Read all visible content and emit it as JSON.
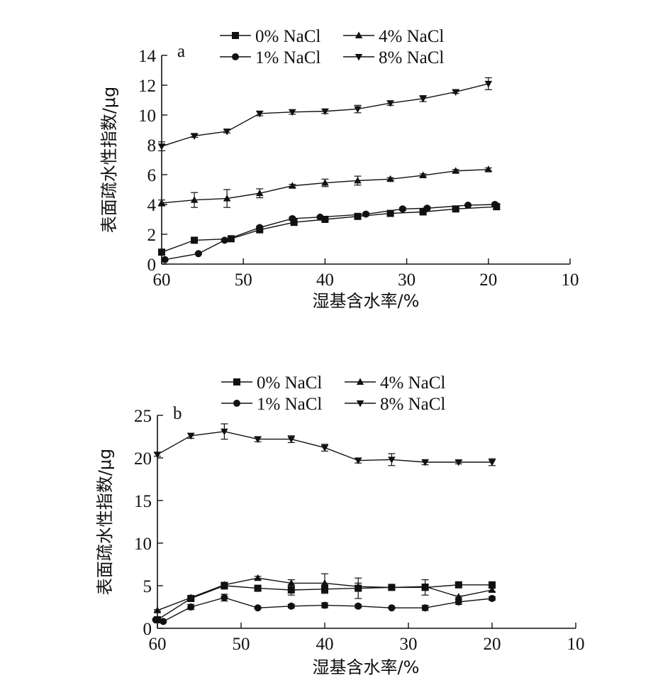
{
  "chart_data": [
    {
      "type": "line",
      "panel_label": "a",
      "xlabel": "湿基含水率/%",
      "ylabel": "表面疏水性指数/μg",
      "xlim": [
        60,
        10
      ],
      "ylim": [
        0,
        14
      ],
      "x_reversed": true,
      "xticks": [
        60,
        50,
        40,
        30,
        20,
        10
      ],
      "yticks": [
        0,
        2,
        4,
        6,
        8,
        10,
        12,
        14
      ],
      "legend_position": "top",
      "series": [
        {
          "name": "0% NaCl",
          "marker": "square",
          "color": "#111111",
          "x": [
            60,
            56,
            51.5,
            48,
            43.8,
            40,
            36,
            32,
            28,
            24,
            19
          ],
          "y": [
            0.8,
            1.6,
            1.7,
            2.3,
            2.8,
            3.0,
            3.2,
            3.4,
            3.5,
            3.7,
            3.85
          ],
          "err": [
            0.1,
            0.1,
            0.1,
            0.1,
            0.2,
            0.1,
            0.1,
            0.1,
            0.1,
            0.1,
            0.2
          ]
        },
        {
          "name": "1% NaCl",
          "marker": "circle",
          "color": "#111111",
          "x": [
            59.6,
            55.5,
            52.3,
            48,
            44,
            40.6,
            35,
            30.5,
            27.5,
            22.5,
            19.2
          ],
          "y": [
            0.3,
            0.7,
            1.6,
            2.45,
            3.05,
            3.15,
            3.35,
            3.7,
            3.75,
            3.95,
            4.0
          ],
          "err": [
            0.05,
            0.05,
            0.05,
            0.1,
            0.1,
            0.05,
            0.1,
            0.1,
            0.1,
            0.05,
            0.1
          ]
        },
        {
          "name": "4% NaCl",
          "marker": "triangle-up",
          "color": "#111111",
          "x": [
            60,
            56,
            52,
            48,
            44,
            40,
            36,
            32,
            28,
            24,
            20
          ],
          "y": [
            4.1,
            4.3,
            4.4,
            4.75,
            5.25,
            5.45,
            5.6,
            5.7,
            5.95,
            6.25,
            6.35
          ],
          "err": [
            0.2,
            0.5,
            0.6,
            0.3,
            0.1,
            0.25,
            0.3,
            0.1,
            0.1,
            0.1,
            0.1
          ]
        },
        {
          "name": "8% NaCl",
          "marker": "triangle-down",
          "color": "#111111",
          "x": [
            60,
            56,
            52,
            48,
            44,
            40,
            36,
            32,
            28,
            24,
            20
          ],
          "y": [
            7.9,
            8.6,
            8.9,
            10.1,
            10.2,
            10.25,
            10.4,
            10.8,
            11.1,
            11.55,
            12.1
          ],
          "err": [
            0.3,
            0.1,
            0.1,
            0.15,
            0.15,
            0.15,
            0.25,
            0.15,
            0.2,
            0.1,
            0.4
          ]
        }
      ]
    },
    {
      "type": "line",
      "panel_label": "b",
      "xlabel": "湿基含水率/%",
      "ylabel": "表面疏水性指数/μg",
      "xlim": [
        60,
        10
      ],
      "ylim": [
        0,
        25
      ],
      "x_reversed": true,
      "xticks": [
        60,
        50,
        40,
        30,
        20,
        10
      ],
      "yticks": [
        0,
        5,
        10,
        15,
        20,
        25
      ],
      "legend_position": "top",
      "series": [
        {
          "name": "0% NaCl",
          "marker": "square",
          "color": "#111111",
          "x": [
            60,
            56,
            52,
            48,
            44,
            40,
            36,
            32,
            28,
            24,
            20
          ],
          "y": [
            1.0,
            3.5,
            5.0,
            4.7,
            4.5,
            4.6,
            4.7,
            4.8,
            4.8,
            5.1,
            5.1
          ],
          "err": [
            0.1,
            0.3,
            0.4,
            0.2,
            0.6,
            0.5,
            1.2,
            0.2,
            0.9,
            0.1,
            0.2
          ]
        },
        {
          "name": "1% NaCl",
          "marker": "circle",
          "color": "#111111",
          "x": [
            60.2,
            59.3,
            56,
            52,
            48,
            44,
            40,
            36,
            32,
            28,
            24,
            20
          ],
          "y": [
            1.0,
            0.8,
            2.5,
            3.6,
            2.4,
            2.6,
            2.7,
            2.6,
            2.4,
            2.4,
            3.1,
            3.5
          ],
          "err": [
            0.1,
            0.1,
            0.3,
            0.4,
            0.1,
            0.2,
            0.3,
            0.2,
            0.1,
            0.3,
            0.3,
            0.2
          ]
        },
        {
          "name": "4% NaCl",
          "marker": "triangle-up",
          "color": "#111111",
          "x": [
            60,
            56,
            52,
            48,
            44,
            40,
            36,
            32,
            28,
            24,
            20
          ],
          "y": [
            2.1,
            3.6,
            5.1,
            5.9,
            5.3,
            5.3,
            4.9,
            4.8,
            4.9,
            3.7,
            4.5
          ],
          "err": [
            0.1,
            0.2,
            0.3,
            0.2,
            0.4,
            1.1,
            0.4,
            0.2,
            0.3,
            0.1,
            0.2
          ]
        },
        {
          "name": "8% NaCl",
          "marker": "triangle-down",
          "color": "#111111",
          "x": [
            60,
            56,
            52,
            48,
            44,
            40,
            36,
            32,
            28,
            24,
            20
          ],
          "y": [
            20.4,
            22.6,
            23.1,
            22.2,
            22.2,
            21.2,
            19.7,
            19.8,
            19.5,
            19.5,
            19.5
          ],
          "err": [
            0.2,
            0.3,
            0.9,
            0.3,
            0.4,
            0.4,
            0.3,
            0.7,
            0.3,
            0.2,
            0.4
          ]
        }
      ]
    }
  ]
}
